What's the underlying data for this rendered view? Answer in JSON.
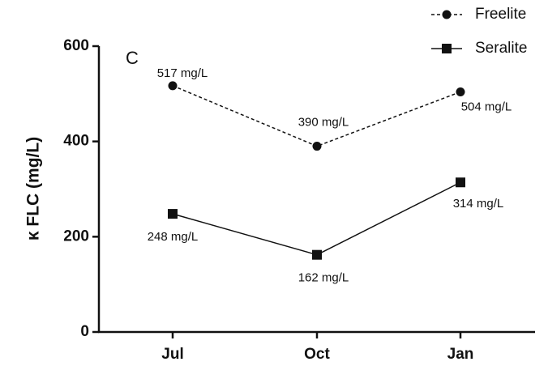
{
  "chart_data": {
    "type": "line",
    "panel": "C",
    "y_label": "κ FLC (mg/L)",
    "categories": [
      "Jul",
      "Oct",
      "Jan"
    ],
    "ylim": [
      0,
      600
    ],
    "yticks": [
      0,
      200,
      400,
      600
    ],
    "legend": "upper right",
    "series": [
      {
        "name": "Freelite",
        "color": "#111111",
        "linestyle": "dashed",
        "marker": "circle",
        "values": [
          517,
          390,
          504
        ],
        "value_labels": [
          "517 mg/L",
          "390 mg/L",
          "504 mg/L"
        ]
      },
      {
        "name": "Seralite",
        "color": "#111111",
        "linestyle": "solid",
        "marker": "square",
        "values": [
          248,
          162,
          314
        ],
        "value_labels": [
          "248 mg/L",
          "162 mg/L",
          "314 mg/L"
        ]
      }
    ]
  }
}
